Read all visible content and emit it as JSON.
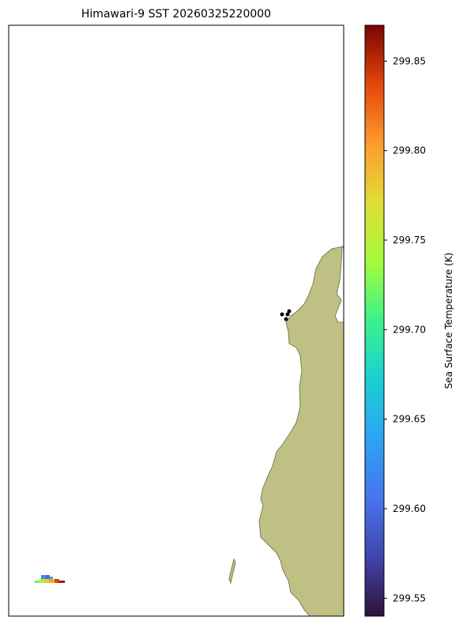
{
  "chart_data": {
    "type": "map",
    "title": "Himawari-9 SST 20260325220000",
    "colorbar_label": "Sea Surface Temperature (K)",
    "clim": [
      299.54,
      299.87
    ],
    "cticks": [
      299.55,
      {
        "value": 299.6,
        "label": "299.60"
      },
      299.65,
      {
        "value": 299.7,
        "label": "299.70"
      },
      299.75,
      {
        "value": 299.8,
        "label": "299.80"
      },
      299.85
    ],
    "sst_values": [
      299.62,
      299.6,
      299.65,
      299.72,
      299.74,
      299.78,
      299.8,
      299.84,
      299.86
    ]
  }
}
